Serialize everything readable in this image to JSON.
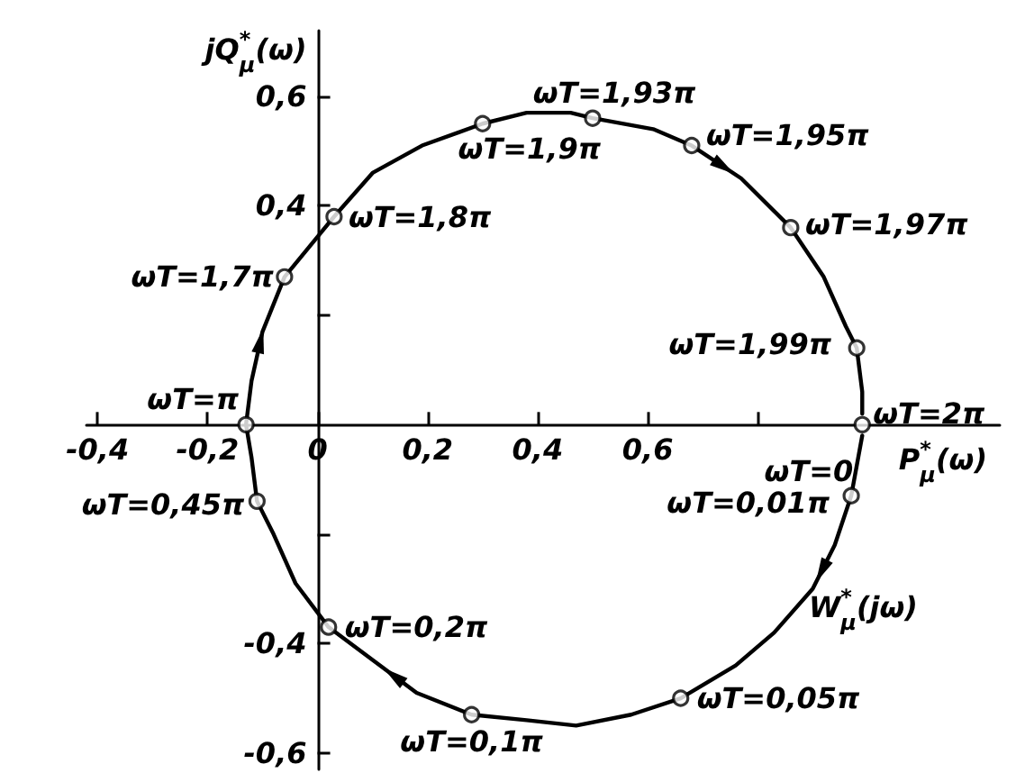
{
  "chart_data": {
    "type": "line",
    "xlabel": "P$^{*}$$_{μ}$(ω)",
    "ylabel": "jQ$^{*}$$_{μ}$(ω)",
    "xlim": [
      -0.42,
      1.24
    ],
    "ylim": [
      -0.63,
      0.72
    ],
    "xticks": [
      {
        "value": -0.4,
        "label": "-0,4"
      },
      {
        "value": -0.2,
        "label": "-0,2"
      },
      0,
      {
        "value": 0.2,
        "label": "0,2"
      },
      {
        "value": 0.4,
        "label": "0,4"
      },
      {
        "value": 0.6,
        "label": "0,6"
      },
      {
        "value": 0.8,
        "label": null
      }
    ],
    "yticks": [
      {
        "value": -0.6,
        "label": "-0,6"
      },
      {
        "value": -0.4,
        "label": "-0,4"
      },
      {
        "value": -0.2,
        "label": null
      },
      {
        "value": 0.2,
        "label": null
      },
      {
        "value": 0.4,
        "label": "0,4"
      },
      {
        "value": 0.6,
        "label": "0,6"
      }
    ],
    "grid": false,
    "series": [
      {
        "name": "W$^{*}$$_{μ}$(jω)",
        "color": "#000000",
        "marker": "none",
        "line_style": "solid",
        "x": [
          0.99,
          0.97,
          0.94,
          0.9,
          0.83,
          0.76,
          0.66,
          0.57,
          0.47,
          0.38,
          0.28,
          0.18,
          0.1,
          0.02,
          -0.04,
          -0.08,
          -0.11,
          -0.12,
          -0.13,
          -0.12,
          -0.1,
          -0.06,
          0.03,
          0.1,
          0.19,
          0.3,
          0.38,
          0.46,
          0.5,
          0.61,
          0.68,
          0.77,
          0.86,
          0.92,
          0.96,
          0.98,
          0.99,
          0.99
        ],
        "values": [
          -0.02,
          -0.13,
          -0.22,
          -0.3,
          -0.38,
          -0.44,
          -0.5,
          -0.53,
          -0.55,
          -0.54,
          -0.53,
          -0.49,
          -0.43,
          -0.37,
          -0.29,
          -0.2,
          -0.14,
          -0.06,
          0,
          0.08,
          0.17,
          0.27,
          0.38,
          0.46,
          0.51,
          0.55,
          0.57,
          0.57,
          0.56,
          0.54,
          0.51,
          0.45,
          0.36,
          0.27,
          0.18,
          0.14,
          0.06,
          0.02
        ]
      },
      {
        "type": "scatter",
        "color": "#000000",
        "marker": "circle",
        "x": [
          0.99,
          0.97,
          0.66,
          0.28,
          0.02,
          -0.11,
          -0.13,
          -0.06,
          0.03,
          0.3,
          0.5,
          0.68,
          0.86,
          0.98
        ],
        "values": [
          0,
          -0.13,
          -0.5,
          -0.53,
          -0.37,
          -0.14,
          0,
          0.27,
          0.38,
          0.55,
          0.56,
          0.51,
          0.36,
          0.14
        ]
      }
    ],
    "annotations": [
      {
        "text": "ωT=2π",
        "x": 0.99,
        "y": 0
      },
      {
        "text": "ωT=0",
        "x": 0.99,
        "y": 0
      },
      {
        "text": "ωT=0,01π",
        "x": 0.97,
        "y": -0.13
      },
      {
        "text": "ωT=0,05π",
        "x": 0.66,
        "y": -0.5
      },
      {
        "text": "ωT=0,1π",
        "x": 0.28,
        "y": -0.53
      },
      {
        "text": "ωT=0,2π",
        "x": 0.02,
        "y": -0.37
      },
      {
        "text": "ωT=0,45π",
        "x": -0.11,
        "y": -0.14
      },
      {
        "text": "ωT=π",
        "x": -0.13,
        "y": 0
      },
      {
        "text": "ωT=1,7π",
        "x": -0.06,
        "y": 0.27
      },
      {
        "text": "ωT=1,8π",
        "x": 0.03,
        "y": 0.38
      },
      {
        "text": "ωT=1,9π",
        "x": 0.3,
        "y": 0.55
      },
      {
        "text": "ωT=1,93π",
        "x": 0.5,
        "y": 0.56
      },
      {
        "text": "ωT=1,95π",
        "x": 0.68,
        "y": 0.51
      },
      {
        "text": "ωT=1,97π",
        "x": 0.86,
        "y": 0.36
      },
      {
        "text": "ωT=1,99π",
        "x": 0.98,
        "y": 0.14
      }
    ]
  }
}
